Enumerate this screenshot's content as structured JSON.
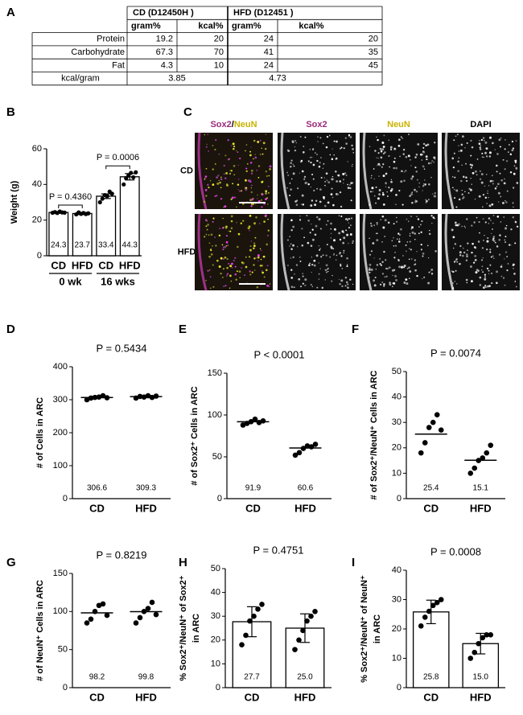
{
  "table": {
    "panel": "A",
    "header": [
      "CD (D12450H )",
      "HFD (D12451 )"
    ],
    "subheader": [
      "gram%",
      "kcal%",
      "gram%",
      "kcal%"
    ],
    "rows": [
      [
        "Protein",
        19.2,
        20,
        24,
        20
      ],
      [
        "Carbohydrate",
        67.3,
        70,
        41,
        35
      ],
      [
        "Fat",
        4.3,
        10,
        24,
        45
      ]
    ],
    "total": [
      "kcal/gram",
      3.85,
      4.73
    ]
  },
  "micrograph": {
    "panel": "C",
    "columns": [
      [
        "Sox2",
        "/",
        "NeuN"
      ],
      [
        "Sox2"
      ],
      [
        "NeuN"
      ],
      [
        "DAPI"
      ]
    ],
    "rows": [
      "CD",
      "HFD"
    ]
  },
  "chart_data": [
    {
      "type": "bar",
      "panel": "B",
      "ylabel": "Weight (g)",
      "categories": [
        "CD",
        "HFD",
        "CD",
        "HFD"
      ],
      "groups": [
        "0 wk",
        "16 wks"
      ],
      "annotations": [
        "P = 0.4360",
        "P = 0.0006"
      ],
      "values": [
        24.3,
        23.7,
        33.4,
        44.3
      ],
      "errors": [
        0.5,
        0.6,
        1.3,
        1.8
      ],
      "points": [
        [
          24.1,
          24.5,
          24.0,
          24.8,
          24.3,
          24.2
        ],
        [
          23.2,
          24.3,
          23.5,
          24.0,
          23.4,
          23.8
        ],
        [
          30,
          32,
          34,
          33.5,
          36,
          34.8
        ],
        [
          40,
          43.5,
          45,
          46.5,
          44,
          46.8
        ]
      ],
      "ylim": [
        0,
        60
      ],
      "yticks": [
        0,
        20,
        40,
        60
      ]
    },
    {
      "type": "dot",
      "panel": "D",
      "title": "P = 0.5434",
      "ylabel": "# of Cells in ARC",
      "categories": [
        "CD",
        "HFD"
      ],
      "values": [
        306.6,
        309.3
      ],
      "points": [
        [
          300,
          305,
          307,
          308,
          312,
          306
        ],
        [
          305,
          310,
          308,
          312,
          307,
          311
        ]
      ],
      "ylim": [
        0,
        400
      ],
      "yticks": [
        0,
        100,
        200,
        300,
        400
      ]
    },
    {
      "type": "dot",
      "panel": "E",
      "title": "P < 0.0001",
      "ylabel": "# of Sox2⁺ Cells in ARC",
      "categories": [
        "CD",
        "HFD"
      ],
      "values": [
        91.9,
        60.6
      ],
      "points": [
        [
          88,
          90,
          92,
          95,
          91,
          93
        ],
        [
          52,
          55,
          60,
          63,
          62,
          65
        ]
      ],
      "ylim": [
        0,
        150
      ],
      "yticks": [
        0,
        50,
        100,
        150
      ]
    },
    {
      "type": "dot",
      "panel": "F",
      "title": "P = 0.0074",
      "ylabel": "# of Sox2⁺/NeuN⁺ Cells in ARC",
      "categories": [
        "CD",
        "HFD"
      ],
      "values": [
        25.4,
        15.1
      ],
      "points": [
        [
          18,
          22,
          28,
          30,
          33,
          27
        ],
        [
          10,
          12,
          15,
          16,
          18,
          21
        ]
      ],
      "ylim": [
        0,
        50
      ],
      "yticks": [
        0,
        10,
        20,
        30,
        40,
        50
      ]
    },
    {
      "type": "dot",
      "panel": "G",
      "title": "P = 0.8219",
      "ylabel": "# of NeuN⁺ Cells in ARC",
      "categories": [
        "CD",
        "HFD"
      ],
      "values": [
        98.2,
        99.8
      ],
      "points": [
        [
          85,
          90,
          100,
          108,
          110,
          95
        ],
        [
          85,
          92,
          100,
          104,
          112,
          96
        ]
      ],
      "ylim": [
        0,
        150
      ],
      "yticks": [
        0,
        50,
        100,
        150
      ]
    },
    {
      "type": "bar",
      "panel": "H",
      "title": "P = 0.4751",
      "ylabel": [
        "% Sox2⁺/NeuN⁺ of Sox2⁺",
        "in ARC"
      ],
      "categories": [
        "CD",
        "HFD"
      ],
      "values": [
        27.7,
        25.0
      ],
      "value_labels": [
        "27.7",
        "25.0"
      ],
      "errors": [
        6.3,
        6.0
      ],
      "points": [
        [
          18,
          22,
          28,
          30,
          33,
          35
        ],
        [
          16,
          20,
          24,
          28,
          30,
          32
        ]
      ],
      "ylim": [
        0,
        50
      ],
      "yticks": [
        0,
        10,
        20,
        30,
        40,
        50
      ]
    },
    {
      "type": "bar",
      "panel": "I",
      "title": "P = 0.0008",
      "ylabel": [
        "% Sox2⁺/NeuN⁺ of NeuN⁺",
        "in ARC"
      ],
      "categories": [
        "CD",
        "HFD"
      ],
      "values": [
        25.8,
        15.0
      ],
      "value_labels": [
        "25.8",
        "15.0"
      ],
      "errors": [
        4.0,
        3.5
      ],
      "points": [
        [
          21,
          24,
          26,
          28,
          29,
          30
        ],
        [
          10,
          12,
          15,
          17,
          18,
          18
        ]
      ],
      "ylim": [
        0,
        40
      ],
      "yticks": [
        0,
        10,
        20,
        30,
        40
      ]
    }
  ]
}
